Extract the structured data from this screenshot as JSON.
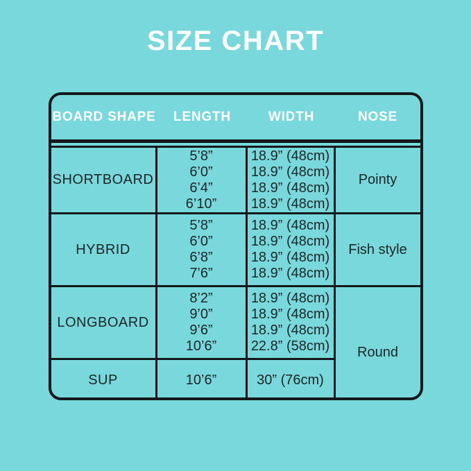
{
  "page": {
    "title": "SIZE CHART"
  },
  "colors": {
    "background": "#79d8db",
    "line": "#13191a",
    "header_text": "#ffffff",
    "body_text": "#1e2526"
  },
  "chart_data": {
    "type": "table",
    "title": "SIZE CHART",
    "columns": [
      "BOARD SHAPE",
      "LENGTH",
      "WIDTH",
      "NOSE"
    ],
    "rows": [
      {
        "board_shape": "SHORTBOARD",
        "lengths": [
          "5’8”",
          "6’0”",
          "6’4”",
          "6’10”"
        ],
        "widths": [
          "18.9” (48cm)",
          "18.9” (48cm)",
          "18.9” (48cm)",
          "18.9” (48cm)"
        ],
        "nose": "Pointy"
      },
      {
        "board_shape": "HYBRID",
        "lengths": [
          "5’8”",
          "6’0”",
          "6’8”",
          "7’6”"
        ],
        "widths": [
          "18.9” (48cm)",
          "18.9” (48cm)",
          "18.9” (48cm)",
          "18.9” (48cm)"
        ],
        "nose": "Fish style"
      },
      {
        "board_shape": "LONGBOARD",
        "lengths": [
          "8’2”",
          "9’0”",
          "9’6”",
          "10’6”"
        ],
        "widths": [
          "18.9” (48cm)",
          "18.9” (48cm)",
          "18.9” (48cm)",
          "22.8” (58cm)"
        ],
        "nose": "Round",
        "nose_rowspan": 2
      },
      {
        "board_shape": "SUP",
        "lengths": [
          "10’6”"
        ],
        "widths": [
          "30” (76cm)"
        ],
        "nose": "Round"
      }
    ]
  }
}
